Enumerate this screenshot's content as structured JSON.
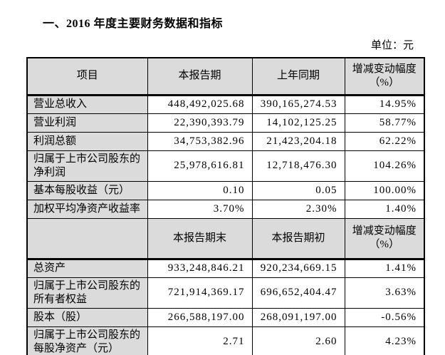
{
  "page": {
    "title": "一、2016 年度主要财务数据和指标",
    "unit_label": "单位：元"
  },
  "table": {
    "header1": [
      "项目",
      "本报告期",
      "上年同期",
      "增减变动幅度（%）"
    ],
    "rows1": [
      {
        "label": "营业总收入",
        "current": "448,492,025.68",
        "prior": "390,165,274.53",
        "change": "14.95%"
      },
      {
        "label": "营业利润",
        "current": "22,390,393.79",
        "prior": "14,102,125.25",
        "change": "58.77%"
      },
      {
        "label": "利润总额",
        "current": "34,753,382.96",
        "prior": "21,423,204.18",
        "change": "62.22%"
      },
      {
        "label": "归属于上市公司股东的净利润",
        "current": "25,978,616.81",
        "prior": "12,718,476.30",
        "change": "104.26%"
      },
      {
        "label": "基本每股收益（元）",
        "current": "0.10",
        "prior": "0.05",
        "change": "100.00%"
      },
      {
        "label": "加权平均净资产收益率",
        "current": "3.70%",
        "prior": "2.30%",
        "change": "1.40%"
      }
    ],
    "header2": [
      "",
      "本报告期末",
      "本报告期初",
      "增减变动幅度（%）"
    ],
    "rows2": [
      {
        "label": "总资产",
        "current": "933,248,846.21",
        "prior": "920,234,669.15",
        "change": "1.41%"
      },
      {
        "label": "归属于上市公司股东的所有者权益",
        "current": "721,914,369.17",
        "prior": "696,652,404.47",
        "change": "3.63%"
      },
      {
        "label": "股本（股）",
        "current": "266,588,197.00",
        "prior": "268,091,197.00",
        "change": "-0.56%"
      },
      {
        "label": "归属于上市公司股东的每股净资产（元）",
        "current": "2.71",
        "prior": "2.60",
        "change": "4.23%"
      }
    ],
    "colors": {
      "header_bg": "#dbdbdb",
      "border": "#000000",
      "page_bg": "#ffffff"
    }
  }
}
